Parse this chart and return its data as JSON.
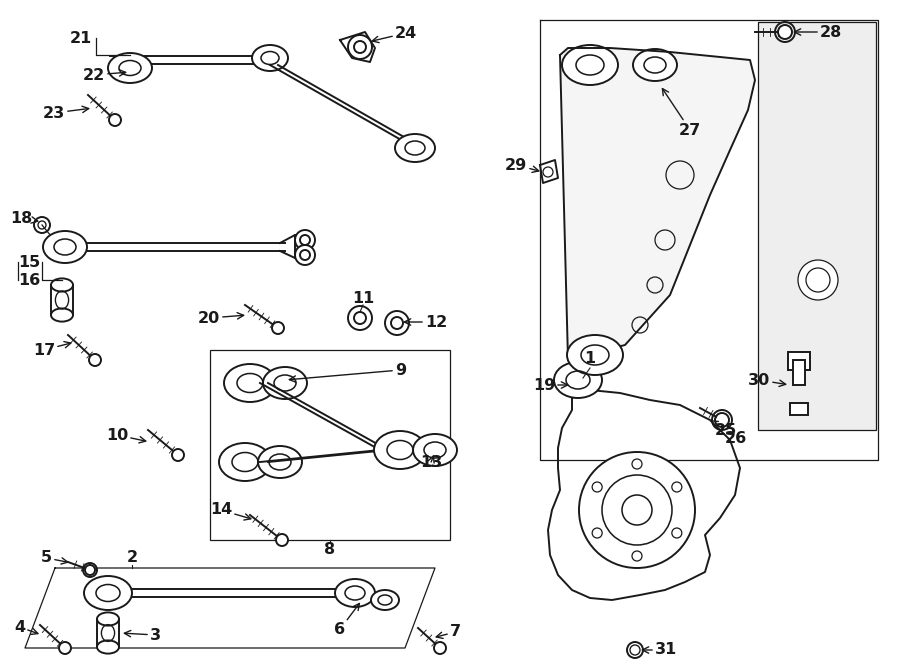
{
  "bg_color": "#ffffff",
  "lc": "#1a1a1a",
  "lw": 1.4,
  "lw_thin": 0.9,
  "fs": 11.5,
  "figw": 9.0,
  "figh": 6.62,
  "dpi": 100,
  "xlim": [
    0,
    900
  ],
  "ylim": [
    0,
    662
  ]
}
